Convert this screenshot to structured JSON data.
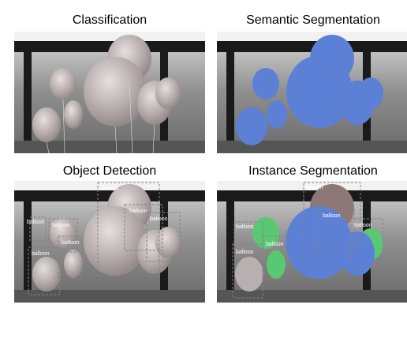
{
  "panels": {
    "classification": {
      "title": "Classification"
    },
    "semantic": {
      "title": "Semantic Segmentation"
    },
    "detection": {
      "title": "Object Detection",
      "labels": [
        "balloon",
        "balloon",
        "balloon",
        "balloon",
        "balloon",
        "balloon",
        "balloon"
      ]
    },
    "instance": {
      "title": "Instance Segmentation",
      "labels": [
        "balloon",
        "balloon",
        "balloon",
        "balloon",
        "balloon",
        "balloon"
      ]
    }
  },
  "colors": {
    "segmentation_fill": "#5b80d6",
    "instance_green": "#59c872",
    "instance_brown": "#8e7777",
    "instance_gray": "#b8b0b0",
    "box_stroke": "#8a8080"
  }
}
